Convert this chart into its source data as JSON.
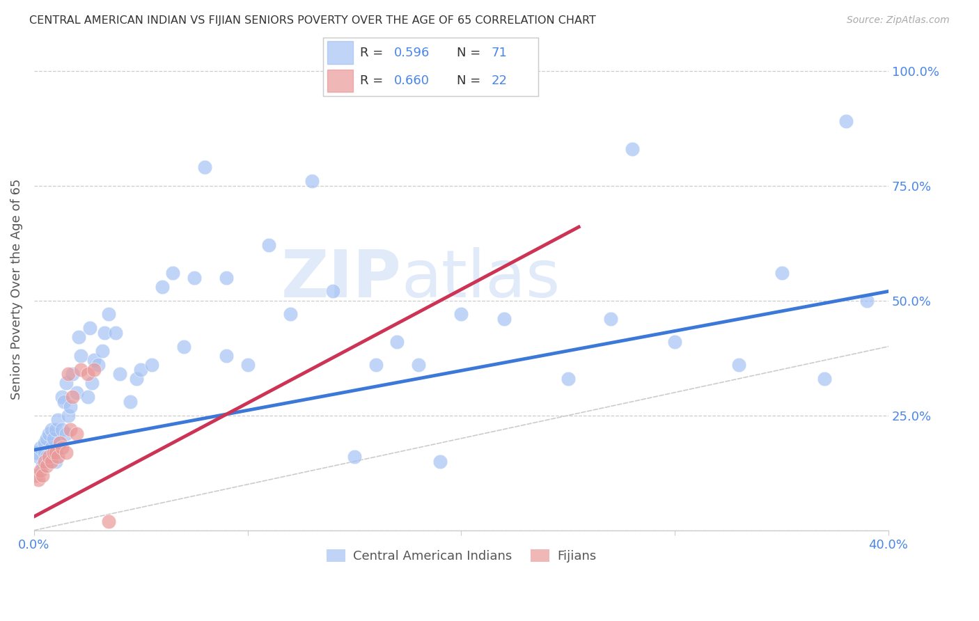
{
  "title": "CENTRAL AMERICAN INDIAN VS FIJIAN SENIORS POVERTY OVER THE AGE OF 65 CORRELATION CHART",
  "source": "Source: ZipAtlas.com",
  "ylabel": "Seniors Poverty Over the Age of 65",
  "xlim": [
    0.0,
    0.4
  ],
  "ylim": [
    0.0,
    1.05
  ],
  "blue_color": "#a4c2f4",
  "pink_color": "#ea9999",
  "blue_line_color": "#3c78d8",
  "pink_line_color": "#cc3355",
  "diagonal_color": "#cccccc",
  "tick_color": "#4a86e8",
  "legend_r1": "0.596",
  "legend_n1": "71",
  "legend_r2": "0.660",
  "legend_n2": "22",
  "legend_label1": "Central American Indians",
  "legend_label2": "Fijians",
  "watermark_zip": "ZIP",
  "watermark_atlas": "atlas",
  "blue_line_y0": 0.175,
  "blue_line_y1": 0.52,
  "blue_line_x0": 0.0,
  "blue_line_x1": 0.4,
  "pink_line_y0": 0.03,
  "pink_line_y1": 0.66,
  "pink_line_x0": 0.0,
  "pink_line_x1": 0.255,
  "blue_scatter_x": [
    0.001,
    0.002,
    0.003,
    0.004,
    0.005,
    0.005,
    0.006,
    0.006,
    0.007,
    0.007,
    0.008,
    0.008,
    0.009,
    0.009,
    0.01,
    0.01,
    0.011,
    0.012,
    0.013,
    0.013,
    0.014,
    0.015,
    0.015,
    0.016,
    0.017,
    0.018,
    0.02,
    0.021,
    0.022,
    0.025,
    0.026,
    0.027,
    0.028,
    0.03,
    0.032,
    0.033,
    0.035,
    0.038,
    0.04,
    0.045,
    0.048,
    0.05,
    0.055,
    0.06,
    0.065,
    0.07,
    0.075,
    0.08,
    0.09,
    0.1,
    0.11,
    0.12,
    0.13,
    0.15,
    0.16,
    0.18,
    0.19,
    0.2,
    0.22,
    0.25,
    0.27,
    0.28,
    0.3,
    0.33,
    0.35,
    0.37,
    0.38,
    0.39,
    0.14,
    0.09,
    0.17
  ],
  "blue_scatter_y": [
    0.17,
    0.16,
    0.18,
    0.14,
    0.19,
    0.17,
    0.2,
    0.16,
    0.21,
    0.15,
    0.22,
    0.18,
    0.2,
    0.17,
    0.22,
    0.15,
    0.24,
    0.19,
    0.22,
    0.29,
    0.28,
    0.21,
    0.32,
    0.25,
    0.27,
    0.34,
    0.3,
    0.42,
    0.38,
    0.29,
    0.44,
    0.32,
    0.37,
    0.36,
    0.39,
    0.43,
    0.47,
    0.43,
    0.34,
    0.28,
    0.33,
    0.35,
    0.36,
    0.53,
    0.56,
    0.4,
    0.55,
    0.79,
    0.55,
    0.36,
    0.62,
    0.47,
    0.76,
    0.16,
    0.36,
    0.36,
    0.15,
    0.47,
    0.46,
    0.33,
    0.46,
    0.83,
    0.41,
    0.36,
    0.56,
    0.33,
    0.89,
    0.5,
    0.52,
    0.38,
    0.41
  ],
  "pink_scatter_x": [
    0.001,
    0.002,
    0.003,
    0.004,
    0.005,
    0.006,
    0.007,
    0.008,
    0.009,
    0.01,
    0.011,
    0.012,
    0.013,
    0.015,
    0.016,
    0.017,
    0.018,
    0.02,
    0.022,
    0.025,
    0.028,
    0.035
  ],
  "pink_scatter_y": [
    0.12,
    0.11,
    0.13,
    0.12,
    0.15,
    0.14,
    0.16,
    0.15,
    0.17,
    0.17,
    0.16,
    0.19,
    0.18,
    0.17,
    0.34,
    0.22,
    0.29,
    0.21,
    0.35,
    0.34,
    0.35,
    0.02
  ]
}
